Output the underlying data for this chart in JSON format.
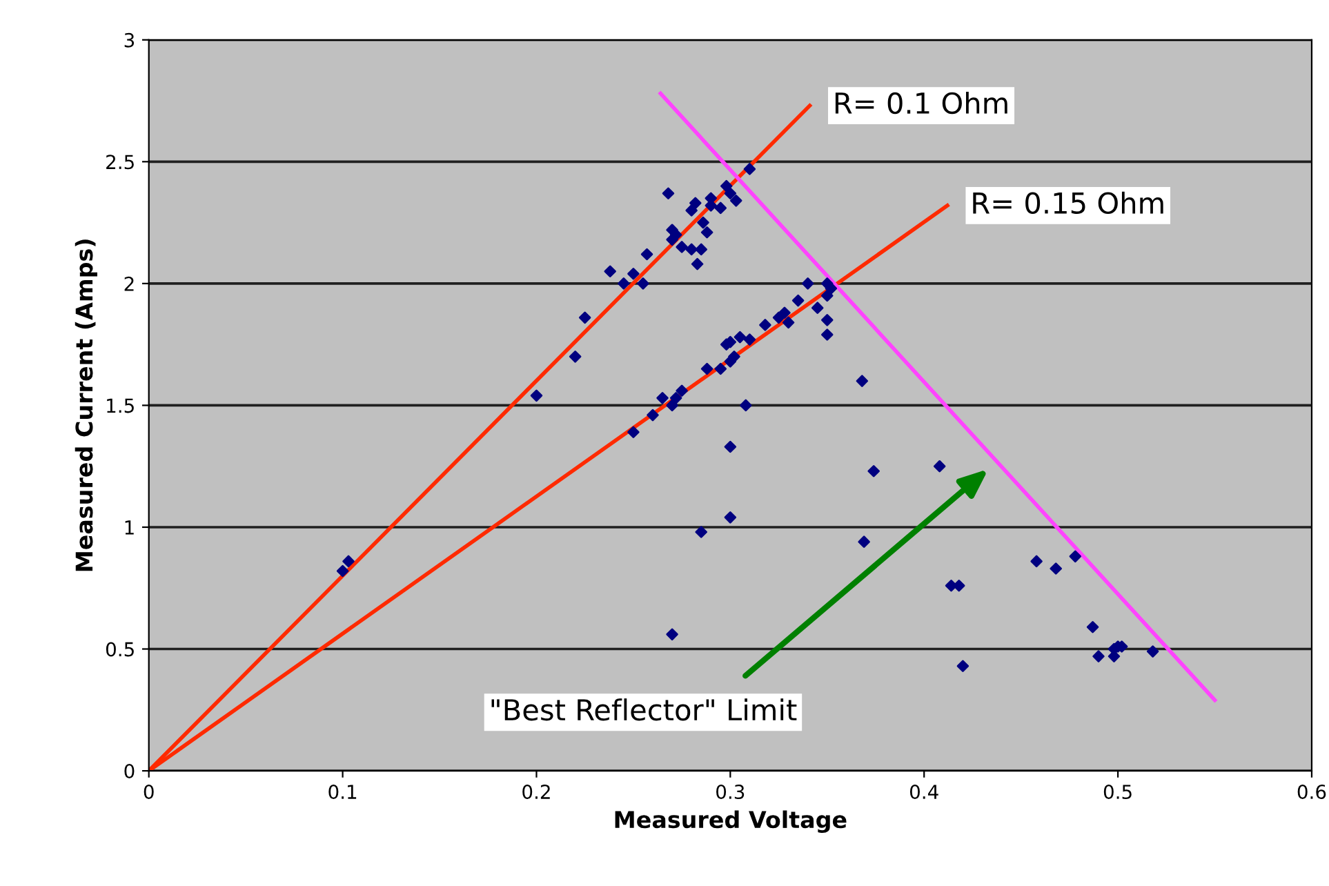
{
  "chart_data": {
    "type": "scatter",
    "xlabel": "Measured Voltage",
    "ylabel": "Measured Current (Amps)",
    "xlim": [
      0,
      0.6
    ],
    "ylim": [
      0,
      3
    ],
    "xticks": [
      0,
      0.1,
      0.2,
      0.3,
      0.4,
      0.5,
      0.6
    ],
    "yticks": [
      0,
      0.5,
      1,
      1.5,
      2,
      2.5,
      3
    ],
    "grid": "y",
    "legend": false,
    "marker": "diamond",
    "series": [
      {
        "color": "#000080",
        "x": [
          0.1,
          0.103,
          0.2,
          0.22,
          0.225,
          0.238,
          0.245,
          0.25,
          0.255,
          0.257,
          0.268,
          0.27,
          0.27,
          0.272,
          0.275,
          0.28,
          0.28,
          0.282,
          0.283,
          0.285,
          0.286,
          0.288,
          0.29,
          0.29,
          0.295,
          0.298,
          0.3,
          0.303,
          0.31,
          0.25,
          0.26,
          0.265,
          0.27,
          0.272,
          0.275,
          0.285,
          0.288,
          0.295,
          0.298,
          0.3,
          0.3,
          0.302,
          0.305,
          0.3,
          0.3,
          0.308,
          0.31,
          0.318,
          0.325,
          0.328,
          0.33,
          0.335,
          0.34,
          0.345,
          0.35,
          0.35,
          0.35,
          0.35,
          0.352,
          0.27,
          0.368,
          0.369,
          0.374,
          0.408,
          0.414,
          0.418,
          0.42,
          0.458,
          0.468,
          0.478,
          0.487,
          0.49,
          0.498,
          0.5,
          0.498,
          0.502,
          0.518
        ],
        "values": [
          0.82,
          0.86,
          1.54,
          1.7,
          1.86,
          2.05,
          2.0,
          2.04,
          2.0,
          2.12,
          2.37,
          2.18,
          2.22,
          2.2,
          2.15,
          2.14,
          2.3,
          2.33,
          2.08,
          2.14,
          2.25,
          2.21,
          2.32,
          2.35,
          2.31,
          2.4,
          2.37,
          2.34,
          2.47,
          1.39,
          1.46,
          1.53,
          1.5,
          1.53,
          1.56,
          0.98,
          1.65,
          1.65,
          1.75,
          1.76,
          1.68,
          1.7,
          1.78,
          1.33,
          1.04,
          1.5,
          1.77,
          1.83,
          1.86,
          1.88,
          1.84,
          1.93,
          2.0,
          1.9,
          1.95,
          2.0,
          1.85,
          1.79,
          1.98,
          0.56,
          1.6,
          0.94,
          1.23,
          1.25,
          0.76,
          0.76,
          0.43,
          0.86,
          0.83,
          0.88,
          0.59,
          0.47,
          0.5,
          0.51,
          0.47,
          0.51,
          0.49
        ]
      },
      {
        "type": "line",
        "name": "R= 0.1 Ohm",
        "color": "#ff2a00",
        "marker": "none",
        "x": [
          0,
          0.341
        ],
        "values": [
          0,
          2.73
        ]
      },
      {
        "type": "line",
        "name": "R= 0.15 Ohm",
        "color": "#ff2a00",
        "marker": "none",
        "x": [
          0,
          0.412
        ],
        "values": [
          0,
          2.32
        ]
      },
      {
        "type": "line",
        "color": "#ff44ff",
        "marker": "none",
        "x": [
          0.264,
          0.55
        ],
        "values": [
          2.78,
          0.29
        ]
      }
    ],
    "annotations": [
      "\"Best Reflector\" Limit"
    ]
  }
}
